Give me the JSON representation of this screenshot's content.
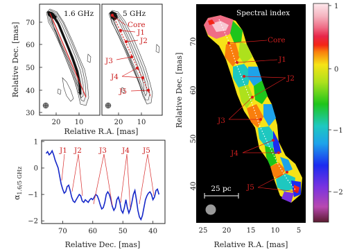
{
  "panels": {
    "map_1_6": {
      "freq_label": "1.6 GHz",
      "ylabel": "Relative Dec. [mas]",
      "yticks": [
        "30",
        "40",
        "50",
        "60",
        "70"
      ],
      "xticks": [
        "20",
        "10"
      ]
    },
    "map_5": {
      "freq_label": "5 GHz",
      "component_labels": [
        "Core",
        "J1",
        "J2",
        "J3",
        "J4",
        "J5"
      ],
      "xticks": [
        "20",
        "10"
      ],
      "shared_xlabel": "Relative R.A. [mas]"
    },
    "spectral": {
      "title": "Spectral index",
      "ylabel": "Relative Dec. [mas]",
      "xlabel": "Relative R.A. [mas]",
      "yticks": [
        "40",
        "50",
        "60",
        "70"
      ],
      "xticks": [
        "25",
        "20",
        "15",
        "10",
        "5"
      ],
      "scalebar_label": "25 pc",
      "component_labels": [
        "Core",
        "J1",
        "J2",
        "J3",
        "J4",
        "J5"
      ],
      "colorbar_ticks": [
        "1",
        "0",
        "−1",
        "−2"
      ]
    }
  },
  "chart_data": [
    {
      "type": "line",
      "ylabel_main": "α",
      "ylabel_sub": "1.6/5 GHz",
      "xlabel": "Relative Dec. [mas]",
      "xlim": [
        77,
        36
      ],
      "ylim": [
        -2.1,
        1.05
      ],
      "xticks": [
        70,
        60,
        50,
        40
      ],
      "yticks": [
        1,
        0,
        -1,
        -2
      ],
      "component_labels": [
        "J1",
        "J2",
        "J3",
        "J4",
        "J5"
      ],
      "series": [
        {
          "color": "#1426c8",
          "x": [
            75.5,
            75,
            74.5,
            74,
            73.5,
            73,
            72.5,
            72,
            71.5,
            71,
            70.5,
            70,
            69.5,
            69,
            68.5,
            68,
            67.5,
            67,
            66.5,
            66,
            65.5,
            65,
            64.5,
            64,
            63.5,
            63,
            62.5,
            62,
            61.5,
            61,
            60.5,
            60,
            59.5,
            59,
            58.5,
            58,
            57.5,
            57,
            56.5,
            56,
            55.5,
            55,
            54.5,
            54,
            53.5,
            53,
            52.5,
            52,
            51.5,
            51,
            50.5,
            50,
            49.5,
            49,
            48.5,
            48,
            47.5,
            47,
            46.5,
            46,
            45.5,
            45,
            44.5,
            44,
            43.5,
            43,
            42.5,
            42,
            41.5,
            41,
            40.5,
            40,
            39.5,
            39,
            38.5,
            38
          ],
          "y": [
            0.55,
            0.62,
            0.5,
            0.55,
            0.65,
            0.5,
            0.3,
            0.15,
            0.0,
            -0.3,
            -0.6,
            -0.8,
            -0.95,
            -0.9,
            -0.7,
            -0.65,
            -0.85,
            -1.1,
            -1.25,
            -1.3,
            -1.2,
            -1.1,
            -1.0,
            -1.05,
            -1.25,
            -1.3,
            -1.2,
            -1.25,
            -1.3,
            -1.2,
            -1.15,
            -1.2,
            -1.1,
            -1.0,
            -1.05,
            -1.2,
            -1.4,
            -1.55,
            -1.5,
            -1.3,
            -1.0,
            -0.9,
            -1.0,
            -1.2,
            -1.45,
            -1.6,
            -1.5,
            -1.2,
            -1.1,
            -1.3,
            -1.6,
            -1.7,
            -1.5,
            -1.2,
            -1.5,
            -1.7,
            -1.55,
            -1.3,
            -1.0,
            -0.85,
            -1.2,
            -1.6,
            -1.85,
            -1.95,
            -1.8,
            -1.5,
            -1.2,
            -1.05,
            -0.95,
            -0.9,
            -1.0,
            -1.2,
            -1.1,
            -0.85,
            -0.8,
            -1.0
          ]
        }
      ]
    }
  ]
}
